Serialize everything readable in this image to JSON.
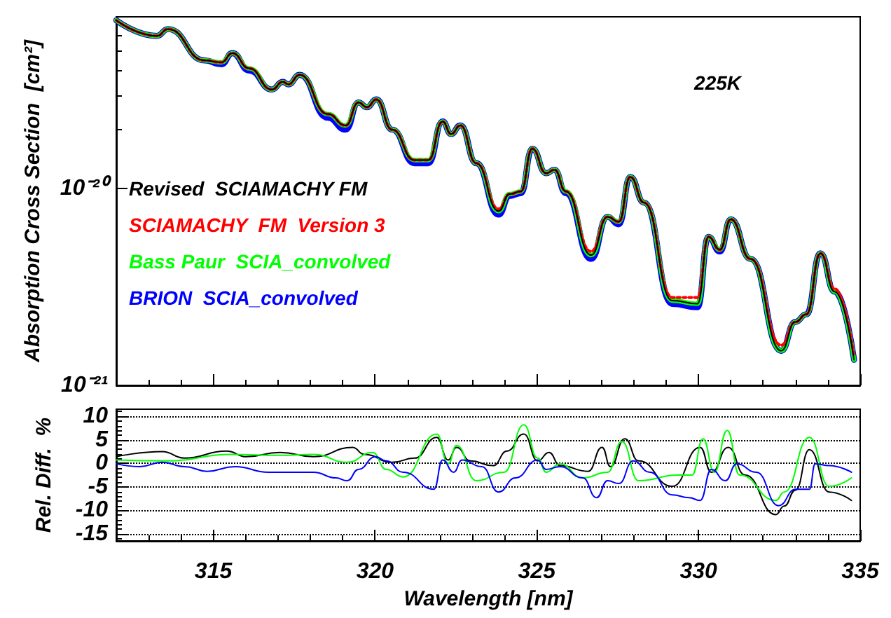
{
  "chart_data": [
    {
      "type": "line",
      "ylabel": "Absorption Cross Section  [cm²]",
      "log": true,
      "xlim": [
        312,
        335
      ],
      "xticks": [
        315,
        320,
        325,
        330,
        335
      ],
      "ylim": [
        1e-21,
        7.5e-20
      ],
      "yticks": [
        {
          "value": 1e-21,
          "label": "10⁻²¹"
        },
        {
          "value": 1e-20,
          "label": "10⁻²⁰"
        }
      ],
      "tick_labels": "y",
      "legend": "left",
      "annotations": [
        "225K"
      ],
      "x": [
        312.0,
        313.26,
        313.6,
        314.73,
        315.25,
        315.59,
        316.11,
        316.81,
        317.15,
        317.32,
        317.67,
        318.54,
        319.09,
        319.49,
        319.75,
        320.04,
        320.53,
        321.22,
        321.65,
        322.09,
        322.35,
        322.64,
        323.13,
        323.82,
        324.16,
        324.51,
        324.86,
        325.29,
        325.55,
        325.9,
        326.68,
        327.19,
        327.54,
        327.89,
        328.32,
        329.19,
        329.97,
        330.31,
        330.66,
        331.0,
        331.61,
        332.56,
        332.99,
        333.34,
        333.77,
        334.21,
        334.81
      ],
      "series": [
        {
          "name": "Revised  SCIAMACHY FM",
          "color": "#000000",
          "values": [
            7.2e-20,
            6e-20,
            6.5e-20,
            4.5e-20,
            4.4e-20,
            4.9e-20,
            4.1e-20,
            3.2e-20,
            3.5e-20,
            3.4e-20,
            3.8e-20,
            2.4e-20,
            2.1e-20,
            2.75e-20,
            2.6e-20,
            2.85e-20,
            2e-20,
            1.4e-20,
            1.4e-20,
            2.2e-20,
            1.9e-20,
            2.1e-20,
            1.35e-20,
            7.7e-21,
            9.4e-21,
            9.7e-21,
            1.6e-20,
            1.2e-20,
            1.25e-20,
            9.7e-21,
            4.6e-21,
            7.2e-21,
            6.8e-21,
            1.15e-20,
            8.5e-21,
            2.7e-21,
            2.6e-21,
            5.7e-21,
            4.9e-21,
            7e-21,
            4.4e-21,
            1.5e-21,
            2.1e-21,
            2.3e-21,
            4.7e-21,
            3e-21,
            1.35e-21
          ]
        },
        {
          "name": "SCIAMACHY  FM  Version 3",
          "color": "#ff0000",
          "line_style": "dotted",
          "values": [
            7.2e-20,
            6e-20,
            6.5e-20,
            4.5e-20,
            4.4e-20,
            4.9e-20,
            4.1e-20,
            3.2e-20,
            3.5e-20,
            3.4e-20,
            3.8e-20,
            2.4e-20,
            2.1e-20,
            2.75e-20,
            2.6e-20,
            2.85e-20,
            2e-20,
            1.4e-20,
            1.4e-20,
            2.2e-20,
            1.9e-20,
            2.1e-20,
            1.35e-20,
            7.9e-21,
            9.4e-21,
            9.7e-21,
            1.6e-20,
            1.2e-20,
            1.25e-20,
            9.7e-21,
            4.8e-21,
            7.2e-21,
            6.8e-21,
            1.15e-20,
            8.5e-21,
            2.8e-21,
            2.8e-21,
            5.7e-21,
            4.9e-21,
            7e-21,
            4.4e-21,
            1.6e-21,
            2.1e-21,
            2.3e-21,
            4.7e-21,
            3.1e-21,
            1.4e-21
          ]
        },
        {
          "name": "Bass Paur  SCIA_convolved",
          "color": "#00ff00",
          "values": [
            7.2e-20,
            6e-20,
            6.5e-20,
            4.5e-20,
            4.4e-20,
            4.9e-20,
            4.1e-20,
            3.2e-20,
            3.5e-20,
            3.4e-20,
            3.8e-20,
            2.4e-20,
            2.1e-20,
            2.75e-20,
            2.6e-20,
            2.85e-20,
            2e-20,
            1.4e-20,
            1.4e-20,
            2.2e-20,
            1.9e-20,
            2.1e-20,
            1.35e-20,
            7.7e-21,
            9.4e-21,
            9.7e-21,
            1.6e-20,
            1.2e-20,
            1.25e-20,
            9.7e-21,
            4.6e-21,
            7.2e-21,
            6.8e-21,
            1.15e-20,
            8.5e-21,
            2.7e-21,
            2.6e-21,
            5.7e-21,
            4.9e-21,
            7e-21,
            4.4e-21,
            1.5e-21,
            2.1e-21,
            2.3e-21,
            4.7e-21,
            3e-21,
            1.35e-21
          ]
        },
        {
          "name": "BRION  SCIA_convolved",
          "color": "#0000ff",
          "values": [
            7.2e-20,
            6e-20,
            6.5e-20,
            4.5e-20,
            4.3e-20,
            4.9e-20,
            4e-20,
            3.2e-20,
            3.5e-20,
            3.4e-20,
            3.8e-20,
            2.3e-20,
            2e-20,
            2.75e-20,
            2.6e-20,
            2.85e-20,
            2e-20,
            1.35e-20,
            1.35e-20,
            2.2e-20,
            1.9e-20,
            2.1e-20,
            1.35e-20,
            7.4e-21,
            9.2e-21,
            9.5e-21,
            1.6e-20,
            1.2e-20,
            1.25e-20,
            9.5e-21,
            4.4e-21,
            7.2e-21,
            6.6e-21,
            1.15e-20,
            8.5e-21,
            2.6e-21,
            2.5e-21,
            5.7e-21,
            4.8e-21,
            7e-21,
            4.4e-21,
            1.5e-21,
            2.1e-21,
            2.3e-21,
            4.7e-21,
            3e-21,
            1.35e-21
          ]
        }
      ]
    },
    {
      "type": "line",
      "xlabel": "Wavelength [nm]",
      "ylabel": "Rel. Diff.  %",
      "xlim": [
        312,
        335
      ],
      "xticks": [
        315,
        320,
        325,
        330,
        335
      ],
      "ylim": [
        -16.5,
        11.5
      ],
      "yticks": [
        -15,
        -10,
        -5,
        0,
        5,
        10
      ],
      "grid": "y",
      "series": [
        {
          "color": "#000000",
          "x": [
            312.0,
            313.42,
            314.11,
            315.41,
            316.02,
            317.06,
            318.1,
            319.31,
            319.66,
            320.53,
            321.22,
            321.91,
            322.26,
            322.52,
            322.95,
            323.65,
            324.08,
            324.6,
            325.03,
            325.38,
            325.72,
            326.59,
            327.02,
            327.28,
            327.72,
            328.15,
            329.19,
            330.05,
            330.4,
            330.92,
            331.44,
            332.39,
            332.65,
            333.0,
            333.43,
            334.04,
            334.73
          ],
          "values": [
            1.4,
            2.5,
            1.1,
            2.6,
            1.4,
            2.3,
            1.4,
            3.4,
            1.9,
            0.2,
            1.1,
            5.5,
            0.7,
            3.4,
            0.5,
            -0.5,
            2.6,
            6.2,
            0.5,
            2.3,
            -0.5,
            -1.7,
            3.4,
            -0.7,
            5.2,
            0.5,
            -4.9,
            3.4,
            -1.9,
            3.4,
            -2.5,
            -10.9,
            -9.1,
            -5.7,
            2.9,
            -6.1,
            -7.9
          ]
        },
        {
          "color": "#00ff00",
          "x": [
            312.0,
            313.6,
            315.5,
            317.06,
            318.1,
            319.14,
            319.92,
            320.35,
            320.87,
            321.91,
            322.26,
            322.52,
            323.13,
            323.99,
            324.6,
            325.03,
            325.29,
            325.72,
            326.42,
            327.19,
            327.63,
            328.15,
            329.36,
            329.8,
            330.14,
            330.49,
            330.89,
            331.27,
            332.39,
            332.65,
            333.43,
            334.04,
            334.73
          ],
          "values": [
            0.7,
            0.5,
            1.9,
            1.7,
            1.9,
            0.2,
            2.3,
            -1.3,
            -2.9,
            6.2,
            -0.1,
            3.8,
            -3.7,
            -1.9,
            8.2,
            1.1,
            -1.9,
            -0.1,
            -3.1,
            -1.9,
            4.6,
            -3.7,
            -2.5,
            -2.5,
            5.2,
            -1.9,
            7.0,
            -2.5,
            -7.9,
            -6.1,
            5.5,
            -4.9,
            -3.1
          ]
        },
        {
          "color": "#0000ff",
          "x": [
            312.0,
            312.73,
            313.42,
            314.11,
            314.81,
            315.67,
            316.71,
            318.1,
            318.79,
            319.14,
            319.49,
            320.01,
            320.35,
            320.87,
            321.82,
            322.09,
            322.43,
            322.69,
            323.3,
            323.82,
            324.34,
            325.03,
            325.29,
            325.72,
            326.42,
            326.85,
            327.19,
            327.54,
            327.98,
            328.5,
            329.19,
            329.71,
            330.05,
            330.4,
            330.83,
            331.18,
            331.79,
            332.48,
            333.0,
            333.43,
            333.61,
            334.04,
            334.73
          ],
          "values": [
            -0.1,
            -0.7,
            0.2,
            -0.7,
            -1.7,
            -0.7,
            -1.9,
            -1.9,
            -3.1,
            -3.7,
            -1.3,
            1.4,
            0.5,
            -1.9,
            -5.5,
            0.7,
            -1.9,
            0.7,
            -0.7,
            -6.1,
            -3.1,
            0.7,
            -1.3,
            -0.7,
            -3.1,
            -7.3,
            -3.7,
            -4.3,
            0.5,
            -1.9,
            -6.7,
            -7.3,
            -7.9,
            -1.3,
            -3.7,
            -0.1,
            -1.9,
            -9.0,
            -5.5,
            -5.5,
            -0.1,
            -0.5,
            -1.9
          ]
        }
      ]
    }
  ]
}
